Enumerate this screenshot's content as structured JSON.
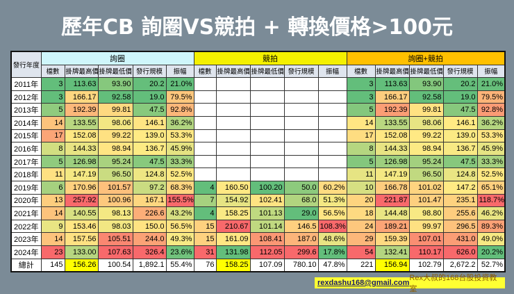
{
  "title": "歷年CB 詢圈VS競拍 + 轉換價格>100元",
  "table": {
    "year_header": "發行年度",
    "groups": [
      "詢圈",
      "競拍",
      "詢圈+競拍"
    ],
    "group_colors": [
      "#cff6fb",
      "#f4f000",
      "#ffc000"
    ],
    "columns": [
      "檔數",
      "掛牌最高價",
      "掛牌最低價",
      "發行規模",
      "振幅"
    ],
    "scale_colors": {
      "low": "#63be7b",
      "mid": "#ffeb84",
      "high": "#f8696b"
    },
    "rows": [
      {
        "year": "2011年",
        "a": [
          "3",
          "113.63",
          "93.90",
          "20.2",
          "21.0%"
        ],
        "b": null,
        "c": [
          "3",
          "113.63",
          "93.90",
          "20.2",
          "21.0%"
        ]
      },
      {
        "year": "2012年",
        "a": [
          "3",
          "166.17",
          "92.58",
          "19.0",
          "79.5%"
        ],
        "b": null,
        "c": [
          "3",
          "166.17",
          "92.58",
          "19.0",
          "79.5%"
        ]
      },
      {
        "year": "2013年",
        "a": [
          "5",
          "192.39",
          "99.81",
          "47.5",
          "92.8%"
        ],
        "b": null,
        "c": [
          "5",
          "192.39",
          "99.81",
          "47.5",
          "92.8%"
        ]
      },
      {
        "year": "2014年",
        "a": [
          "14",
          "133.55",
          "98.06",
          "146.1",
          "36.2%"
        ],
        "b": null,
        "c": [
          "14",
          "133.55",
          "98.06",
          "146.1",
          "36.2%"
        ]
      },
      {
        "year": "2015年",
        "a": [
          "17",
          "152.08",
          "99.22",
          "139.0",
          "53.3%"
        ],
        "b": null,
        "c": [
          "17",
          "152.08",
          "99.22",
          "139.0",
          "53.3%"
        ]
      },
      {
        "year": "2016年",
        "a": [
          "8",
          "144.33",
          "98.94",
          "136.7",
          "45.9%"
        ],
        "b": null,
        "c": [
          "8",
          "144.33",
          "98.94",
          "136.7",
          "45.9%"
        ]
      },
      {
        "year": "2017年",
        "a": [
          "5",
          "126.98",
          "95.24",
          "47.5",
          "33.3%"
        ],
        "b": null,
        "c": [
          "5",
          "126.98",
          "95.24",
          "47.5",
          "33.3%"
        ]
      },
      {
        "year": "2018年",
        "a": [
          "11",
          "147.19",
          "96.50",
          "124.8",
          "52.5%"
        ],
        "b": null,
        "c": [
          "11",
          "147.19",
          "96.50",
          "124.8",
          "52.5%"
        ]
      },
      {
        "year": "2019年",
        "a": [
          "6",
          "170.96",
          "101.57",
          "97.2",
          "68.3%"
        ],
        "b": [
          "4",
          "160.50",
          "100.20",
          "50.0",
          "60.2%"
        ],
        "c": [
          "10",
          "166.78",
          "101.02",
          "147.2",
          "65.1%"
        ]
      },
      {
        "year": "2020年",
        "a": [
          "13",
          "257.92",
          "100.96",
          "167.1",
          "155.5%"
        ],
        "b": [
          "7",
          "154.92",
          "102.41",
          "68.0",
          "51.3%"
        ],
        "c": [
          "20",
          "221.87",
          "101.47",
          "235.1",
          "118.7%"
        ]
      },
      {
        "year": "2021年",
        "a": [
          "14",
          "140.55",
          "98.13",
          "226.6",
          "43.2%"
        ],
        "b": [
          "4",
          "158.25",
          "101.13",
          "29.0",
          "56.5%"
        ],
        "c": [
          "18",
          "144.48",
          "98.80",
          "255.6",
          "46.2%"
        ]
      },
      {
        "year": "2022年",
        "a": [
          "9",
          "153.46",
          "98.03",
          "150.0",
          "56.5%"
        ],
        "b": [
          "15",
          "210.67",
          "101.14",
          "146.5",
          "108.3%"
        ],
        "c": [
          "24",
          "189.21",
          "99.97",
          "296.5",
          "89.3%"
        ]
      },
      {
        "year": "2023年",
        "a": [
          "14",
          "157.56",
          "105.51",
          "244.0",
          "49.3%"
        ],
        "b": [
          "15",
          "161.09",
          "108.41",
          "187.0",
          "48.6%"
        ],
        "c": [
          "29",
          "159.39",
          "107.01",
          "431.0",
          "49.0%"
        ]
      },
      {
        "year": "2024年",
        "a": [
          "23",
          "133.00",
          "107.63",
          "326.4",
          "23.6%"
        ],
        "b": [
          "31",
          "131.98",
          "112.05",
          "299.6",
          "17.8%"
        ],
        "c": [
          "54",
          "132.41",
          "110.17",
          "626.0",
          "20.2%"
        ]
      }
    ],
    "total": {
      "year": "總計",
      "a": [
        "145",
        "156.26",
        "100.54",
        "1,892.1",
        "55.4%"
      ],
      "b": [
        "76",
        "158.25",
        "107.09",
        "780.10",
        "47.8%"
      ],
      "c": [
        "221",
        "156.94",
        "102.79",
        "2,672.2",
        "52.7%"
      ]
    },
    "total_highlight_color": "#ffff00"
  },
  "footer": {
    "email": "rexdashu168@gmail.com",
    "brand": "Rex大叔的168台股投資教室"
  }
}
